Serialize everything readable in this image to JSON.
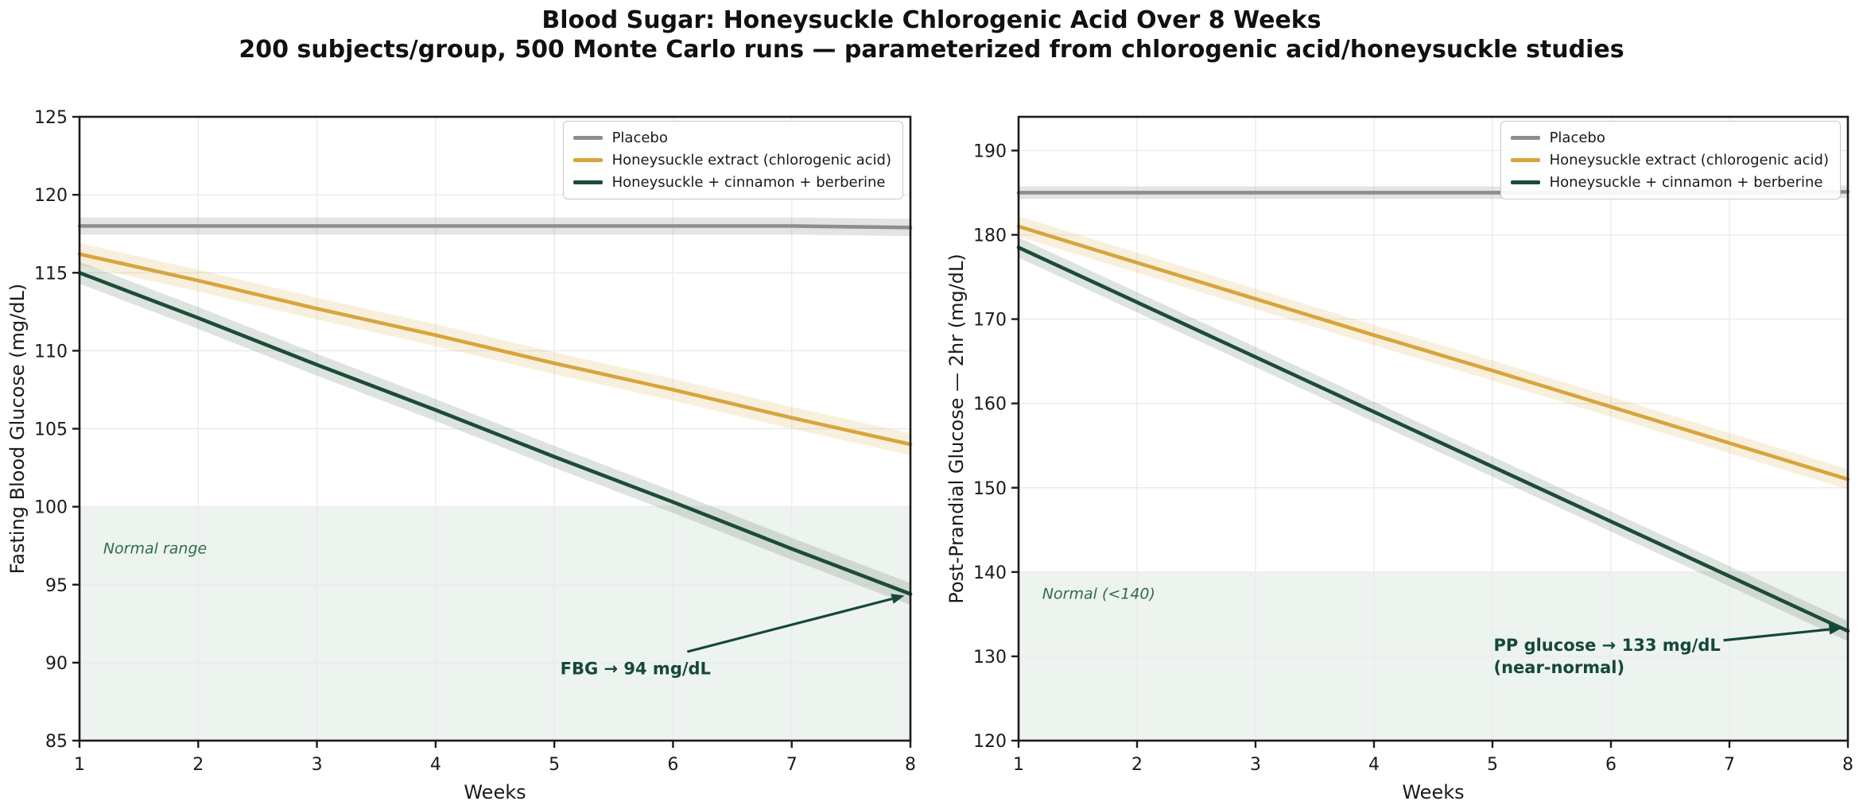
{
  "figure": {
    "title_line1": "Blood Sugar: Honeysuckle Chlorogenic Acid Over 8 Weeks",
    "title_line2": "200 subjects/group, 500 Monte Carlo runs — parameterized from chlorogenic acid/honeysuckle studies",
    "background": "#ffffff",
    "grid_color": "#ebebeb",
    "spine_color": "#1c1c1c",
    "tick_label_color": "#1a1a1a"
  },
  "chart_data": [
    {
      "type": "line",
      "xlabel": "Weeks",
      "ylabel": "Fasting Blood Glucose (mg/dL)",
      "x": [
        1,
        2,
        3,
        4,
        5,
        6,
        7,
        8
      ],
      "xlim": [
        1,
        8
      ],
      "ylim": [
        85,
        125
      ],
      "xticks": [
        1,
        2,
        3,
        4,
        5,
        6,
        7,
        8
      ],
      "yticks": [
        85,
        90,
        95,
        100,
        105,
        110,
        115,
        120,
        125
      ],
      "grid": true,
      "legend_position": "upper right",
      "series": [
        {
          "name": "Placebo",
          "color": "#8e8e8e",
          "band_color": "#aaaaaa",
          "band_opacity": 0.32,
          "band_halfwidth": 0.55,
          "values": [
            118.0,
            118.0,
            118.0,
            118.0,
            118.0,
            118.0,
            118.0,
            117.9
          ]
        },
        {
          "name": "Honeysuckle extract (chlorogenic acid)",
          "color": "#D8A43C",
          "band_color": "#e0b964",
          "band_opacity": 0.22,
          "band_halfwidth": 0.7,
          "values": [
            116.2,
            114.5,
            112.7,
            111.0,
            109.2,
            107.5,
            105.7,
            104.0
          ]
        },
        {
          "name": "Honeysuckle + cinnamon + berberine",
          "color": "#1C4B39",
          "band_color": "#64806f",
          "band_opacity": 0.22,
          "band_halfwidth": 0.7,
          "values": [
            115.0,
            112.1,
            109.1,
            106.2,
            103.2,
            100.3,
            97.3,
            94.4
          ]
        }
      ],
      "normal_zone": {
        "ymin": 85,
        "ymax": 100,
        "fill": "#EDF3EF",
        "label": "Normal range",
        "label_color": "#2F6B52",
        "label_x": 1.2,
        "label_y": 97.3
      },
      "annotation": {
        "lines": [
          "FBG → 94 mg/dL"
        ],
        "color": "#15483A",
        "text_x": 5.05,
        "text_y": 89.6,
        "arrow_from": [
          6.12,
          90.7
        ],
        "arrow_to": [
          7.95,
          94.3
        ]
      }
    },
    {
      "type": "line",
      "xlabel": "Weeks",
      "ylabel": "Post-Prandial Glucose — 2hr (mg/dL)",
      "x": [
        1,
        2,
        3,
        4,
        5,
        6,
        7,
        8
      ],
      "xlim": [
        1,
        8
      ],
      "ylim": [
        120,
        194
      ],
      "xticks": [
        1,
        2,
        3,
        4,
        5,
        6,
        7,
        8
      ],
      "yticks": [
        120,
        130,
        140,
        150,
        160,
        170,
        180,
        190
      ],
      "grid": true,
      "legend_position": "upper right",
      "series": [
        {
          "name": "Placebo",
          "color": "#8e8e8e",
          "band_color": "#aaaaaa",
          "band_opacity": 0.32,
          "band_halfwidth": 0.75,
          "values": [
            185.0,
            185.0,
            185.0,
            185.0,
            185.0,
            185.0,
            185.0,
            185.1
          ]
        },
        {
          "name": "Honeysuckle extract (chlorogenic acid)",
          "color": "#D8A43C",
          "band_color": "#e0b964",
          "band_opacity": 0.22,
          "band_halfwidth": 1.2,
          "values": [
            181.0,
            176.7,
            172.4,
            168.1,
            163.9,
            159.6,
            155.3,
            151.0
          ]
        },
        {
          "name": "Honeysuckle + cinnamon + berberine",
          "color": "#1C4B39",
          "band_color": "#64806f",
          "band_opacity": 0.22,
          "band_halfwidth": 1.2,
          "values": [
            178.5,
            172.0,
            165.5,
            159.0,
            152.5,
            146.0,
            139.5,
            133.0
          ]
        }
      ],
      "normal_zone": {
        "ymin": 120,
        "ymax": 140,
        "fill": "#EDF3EF",
        "label": "Normal (<140)",
        "label_color": "#2F6B52",
        "label_x": 1.2,
        "label_y": 137.4
      },
      "annotation": {
        "lines": [
          "PP glucose → 133 mg/dL",
          "(near-normal)"
        ],
        "color": "#15483A",
        "text_x": 5.01,
        "text_y": 131.3,
        "arrow_from": [
          6.95,
          131.9
        ],
        "arrow_to": [
          7.95,
          133.35
        ]
      }
    }
  ]
}
